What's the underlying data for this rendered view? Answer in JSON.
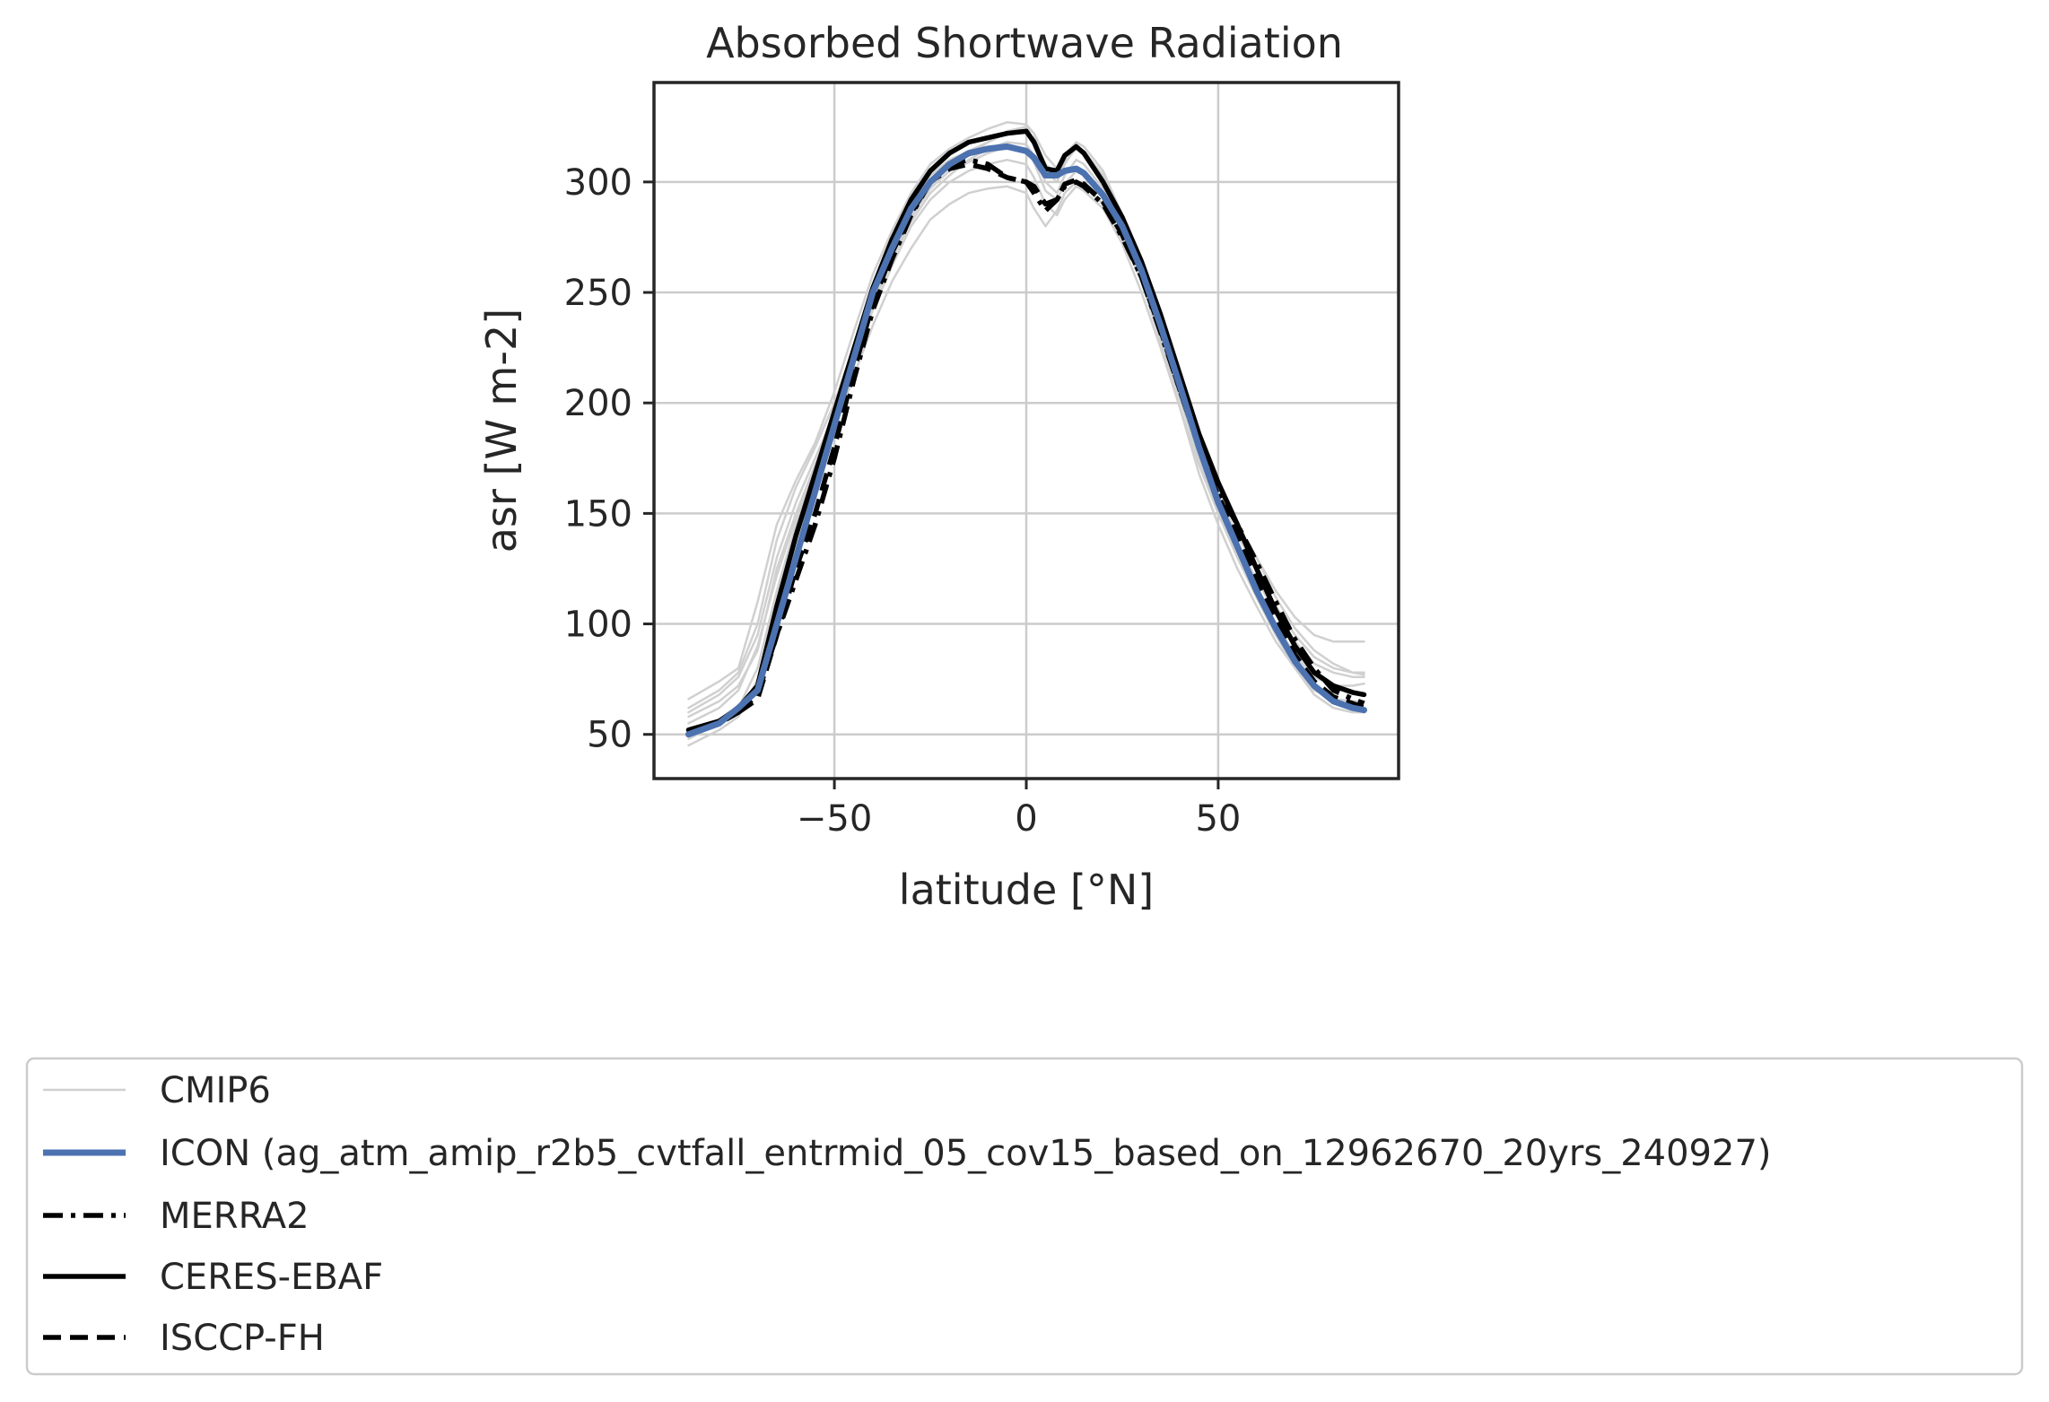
{
  "chart_data": {
    "type": "line",
    "title": "Absorbed Shortwave Radiation",
    "xlabel": "latitude [°N]",
    "ylabel": "asr [W m-2]",
    "xlim": [
      -97,
      97
    ],
    "ylim": [
      30,
      345
    ],
    "xticks": [
      -50,
      0,
      50
    ],
    "xtick_labels": [
      "−50",
      "0",
      "50"
    ],
    "yticks": [
      50,
      100,
      150,
      200,
      250,
      300
    ],
    "ytick_labels": [
      "50",
      "100",
      "150",
      "200",
      "250",
      "300"
    ],
    "grid": true,
    "legend_position": "bottom",
    "x": [
      -88,
      -80,
      -75,
      -70,
      -65,
      -60,
      -55,
      -50,
      -45,
      -40,
      -35,
      -30,
      -25,
      -20,
      -15,
      -10,
      -5,
      0,
      2,
      5,
      8,
      10,
      13,
      15,
      20,
      25,
      30,
      35,
      40,
      45,
      50,
      55,
      60,
      65,
      70,
      75,
      80,
      85,
      88
    ],
    "colors": {
      "cmip6": "#d0d0d0",
      "icon": "#4c72b0",
      "obs": "#000000",
      "grid": "#cccccc",
      "frame": "#262626"
    },
    "series": [
      {
        "name": "CMIP6",
        "style": "cmip",
        "values": [
          60,
          68,
          76,
          95,
          130,
          155,
          175,
          195,
          220,
          245,
          265,
          282,
          295,
          303,
          310,
          315,
          318,
          317,
          312,
          300,
          295,
          303,
          310,
          308,
          297,
          280,
          258,
          232,
          205,
          180,
          160,
          145,
          130,
          112,
          98,
          88,
          82,
          78,
          77
        ]
      },
      {
        "name": "CMIP6",
        "style": "cmip",
        "values": [
          66,
          74,
          80,
          110,
          145,
          165,
          182,
          205,
          232,
          258,
          278,
          295,
          308,
          315,
          320,
          324,
          327,
          326,
          322,
          312,
          306,
          312,
          318,
          316,
          305,
          285,
          260,
          232,
          203,
          175,
          150,
          130,
          112,
          95,
          80,
          68,
          62,
          60,
          60
        ]
      },
      {
        "name": "CMIP6",
        "style": "cmip",
        "values": [
          45,
          52,
          58,
          75,
          112,
          140,
          165,
          188,
          212,
          235,
          255,
          270,
          283,
          290,
          295,
          297,
          298,
          295,
          288,
          280,
          287,
          295,
          300,
          298,
          290,
          275,
          255,
          230,
          205,
          178,
          158,
          140,
          125,
          108,
          95,
          85,
          80,
          78,
          78
        ]
      },
      {
        "name": "CMIP6",
        "style": "cmip",
        "values": [
          55,
          62,
          70,
          90,
          122,
          148,
          170,
          192,
          218,
          242,
          262,
          280,
          292,
          300,
          305,
          308,
          310,
          308,
          302,
          290,
          285,
          292,
          298,
          296,
          288,
          272,
          250,
          225,
          198,
          172,
          150,
          132,
          116,
          100,
          86,
          76,
          72,
          72,
          73
        ]
      },
      {
        "name": "CMIP6",
        "style": "cmip",
        "values": [
          62,
          70,
          78,
          100,
          138,
          162,
          180,
          200,
          225,
          250,
          272,
          290,
          303,
          310,
          314,
          318,
          322,
          322,
          318,
          308,
          303,
          309,
          315,
          314,
          303,
          285,
          262,
          235,
          208,
          182,
          162,
          145,
          130,
          115,
          103,
          95,
          92,
          92,
          92
        ]
      },
      {
        "name": "CMIP6",
        "style": "cmip",
        "values": [
          48,
          55,
          62,
          80,
          115,
          145,
          170,
          195,
          222,
          248,
          270,
          288,
          300,
          307,
          312,
          318,
          323,
          325,
          322,
          305,
          300,
          308,
          316,
          314,
          302,
          282,
          255,
          228,
          198,
          168,
          145,
          125,
          108,
          92,
          80,
          70,
          66,
          65,
          65
        ]
      },
      {
        "name": "CMIP6",
        "style": "cmip",
        "values": [
          58,
          65,
          72,
          88,
          125,
          150,
          172,
          193,
          218,
          244,
          266,
          284,
          297,
          305,
          309,
          313,
          316,
          314,
          309,
          296,
          292,
          299,
          305,
          303,
          294,
          278,
          256,
          230,
          202,
          175,
          153,
          136,
          120,
          105,
          92,
          82,
          78,
          76,
          76
        ]
      },
      {
        "name": "ICON (ag_atm_amip_r2b5_cvtfall_entrmid_05_cov15_based_on_12962670_20yrs_240927)",
        "style": "icon",
        "values": [
          50,
          55,
          62,
          70,
          100,
          130,
          160,
          190,
          220,
          250,
          270,
          288,
          300,
          308,
          313,
          315,
          316,
          314,
          311,
          303,
          303,
          305,
          306,
          304,
          294,
          280,
          260,
          235,
          208,
          180,
          155,
          135,
          115,
          98,
          83,
          72,
          65,
          62,
          61
        ]
      },
      {
        "name": "MERRA2",
        "style": "dashdot",
        "values": [
          50,
          55,
          60,
          68,
          95,
          120,
          145,
          175,
          210,
          242,
          265,
          285,
          300,
          308,
          310,
          308,
          302,
          300,
          295,
          287,
          292,
          298,
          300,
          298,
          290,
          275,
          257,
          232,
          206,
          180,
          160,
          145,
          128,
          110,
          93,
          80,
          70,
          66,
          64
        ]
      },
      {
        "name": "CERES-EBAF",
        "style": "solid",
        "values": [
          52,
          56,
          62,
          72,
          108,
          140,
          168,
          196,
          224,
          252,
          274,
          292,
          305,
          313,
          318,
          320,
          322,
          323,
          318,
          306,
          305,
          312,
          316,
          313,
          300,
          284,
          264,
          240,
          213,
          186,
          164,
          145,
          125,
          106,
          90,
          78,
          72,
          69,
          68
        ]
      },
      {
        "name": "ISCCP-FH",
        "style": "dash",
        "values": [
          50,
          56,
          60,
          66,
          95,
          125,
          150,
          180,
          214,
          245,
          268,
          286,
          300,
          306,
          308,
          306,
          302,
          300,
          298,
          290,
          292,
          299,
          301,
          299,
          291,
          276,
          257,
          233,
          206,
          180,
          158,
          140,
          120,
          102,
          86,
          74,
          67,
          64,
          62
        ]
      }
    ],
    "legend": [
      {
        "label": "CMIP6",
        "style": "cmip"
      },
      {
        "label": "ICON (ag_atm_amip_r2b5_cvtfall_entrmid_05_cov15_based_on_12962670_20yrs_240927)",
        "style": "icon"
      },
      {
        "label": "MERRA2",
        "style": "dashdot"
      },
      {
        "label": "CERES-EBAF",
        "style": "solid"
      },
      {
        "label": "ISCCP-FH",
        "style": "dash"
      }
    ]
  }
}
